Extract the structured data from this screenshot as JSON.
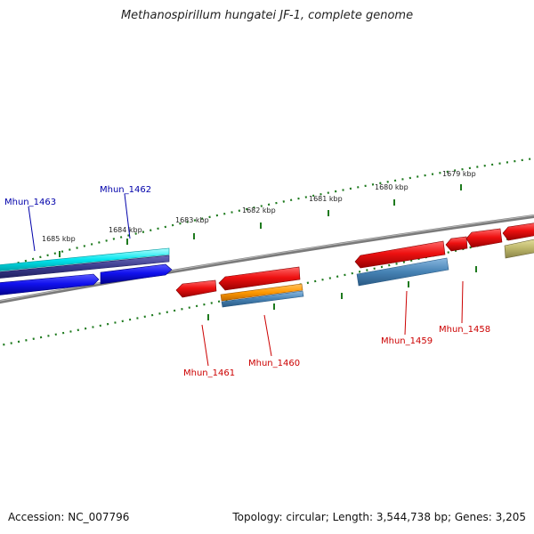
{
  "title": "Methanospirillum hungatei JF-1, complete genome",
  "footer": {
    "accession": "Accession: NC_007796",
    "stats": "Topology: circular; Length: 3,544,738 bp; Genes: 3,205"
  },
  "colors": {
    "forward_label": "#0000aa",
    "reverse_label": "#cc0000",
    "backbone": "#808080",
    "tick": "#1e7a1e",
    "cds_reverse": "#ee1111",
    "cds_forward": "#1111ee",
    "rna": "#00e5ee",
    "feature_navy": "#3a3a8c",
    "feature_steel": "#4682b4",
    "feature_orange": "#ff9900",
    "feature_khaki": "#bdb76b"
  },
  "ticks": [
    {
      "label": "1685 kbp"
    },
    {
      "label": "1684 kbp"
    },
    {
      "label": "1683 kbp"
    },
    {
      "label": "1682 kbp"
    },
    {
      "label": "1681 kbp"
    },
    {
      "label": "1680 kbp"
    },
    {
      "label": "1679 kbp"
    }
  ],
  "genes": [
    {
      "label": "Mhun_1463",
      "strand": "forward"
    },
    {
      "label": "Mhun_1462",
      "strand": "forward"
    },
    {
      "label": "Mhun_1461",
      "strand": "reverse"
    },
    {
      "label": "Mhun_1460",
      "strand": "reverse"
    },
    {
      "label": "Mhun_1459",
      "strand": "reverse"
    },
    {
      "label": "Mhun_1458",
      "strand": "reverse"
    }
  ]
}
